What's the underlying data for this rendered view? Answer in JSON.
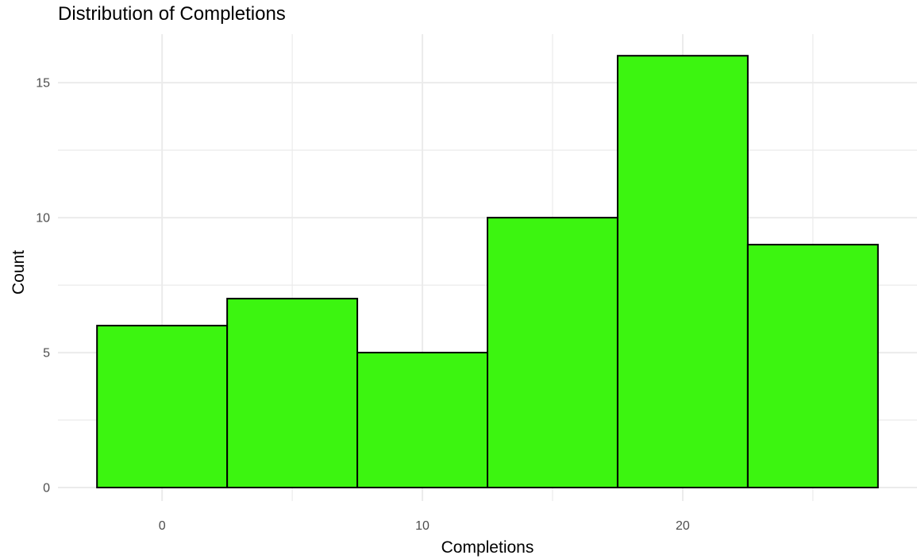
{
  "chart_data": {
    "type": "bar",
    "title": "Distribution of Completions",
    "xlabel": "Completions",
    "ylabel": "Count",
    "bins": [
      {
        "x_start": -2.5,
        "x_end": 2.5,
        "count": 6
      },
      {
        "x_start": 2.5,
        "x_end": 7.5,
        "count": 7
      },
      {
        "x_start": 7.5,
        "x_end": 12.5,
        "count": 5
      },
      {
        "x_start": 12.5,
        "x_end": 17.5,
        "count": 10
      },
      {
        "x_start": 17.5,
        "x_end": 22.5,
        "count": 16
      },
      {
        "x_start": 22.5,
        "x_end": 27.5,
        "count": 9
      }
    ],
    "xlim": [
      -4,
      29
    ],
    "ylim": [
      -0.5,
      16.8
    ],
    "x_ticks": [
      0,
      10,
      20
    ],
    "x_minor_ticks": [
      5,
      15,
      25
    ],
    "y_ticks": [
      0,
      5,
      10,
      15
    ],
    "y_minor_ticks": [
      2.5,
      7.5,
      12.5
    ],
    "grid": true,
    "bar_fill": "#3cf510",
    "bar_edge": "#000000",
    "grid_color": "#ebebeb"
  }
}
